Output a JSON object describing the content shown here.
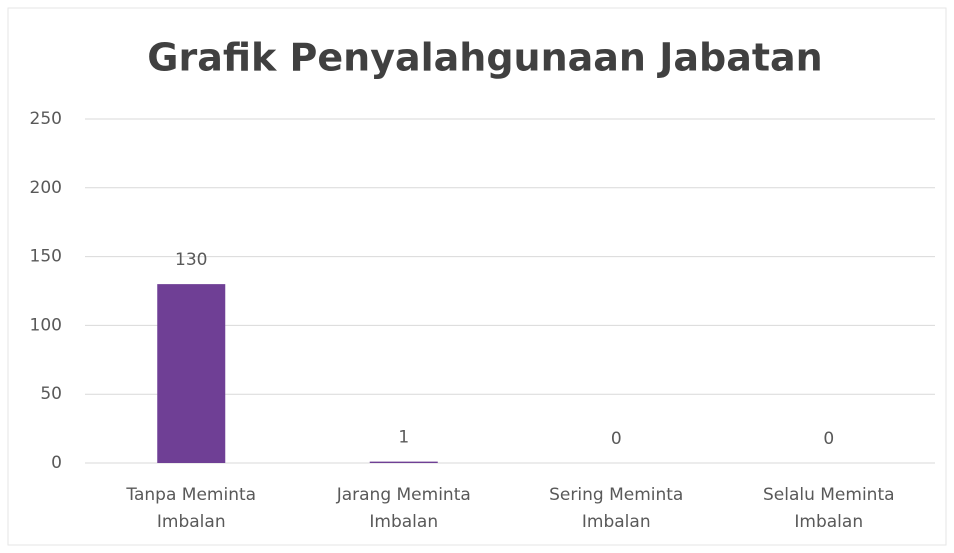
{
  "chart_data": {
    "type": "bar",
    "title": "Grafik Penyalahgunaan Jabatan",
    "categories": [
      "Tanpa Meminta Imbalan",
      "Jarang Meminta Imbalan",
      "Sering Meminta Imbalan",
      "Selalu Meminta Imbalan"
    ],
    "values": [
      130,
      1,
      0,
      0
    ],
    "color": "#6f3f95",
    "ylim": [
      0,
      250
    ],
    "yticks": [
      0,
      50,
      100,
      150,
      200,
      250
    ],
    "grid": true
  }
}
